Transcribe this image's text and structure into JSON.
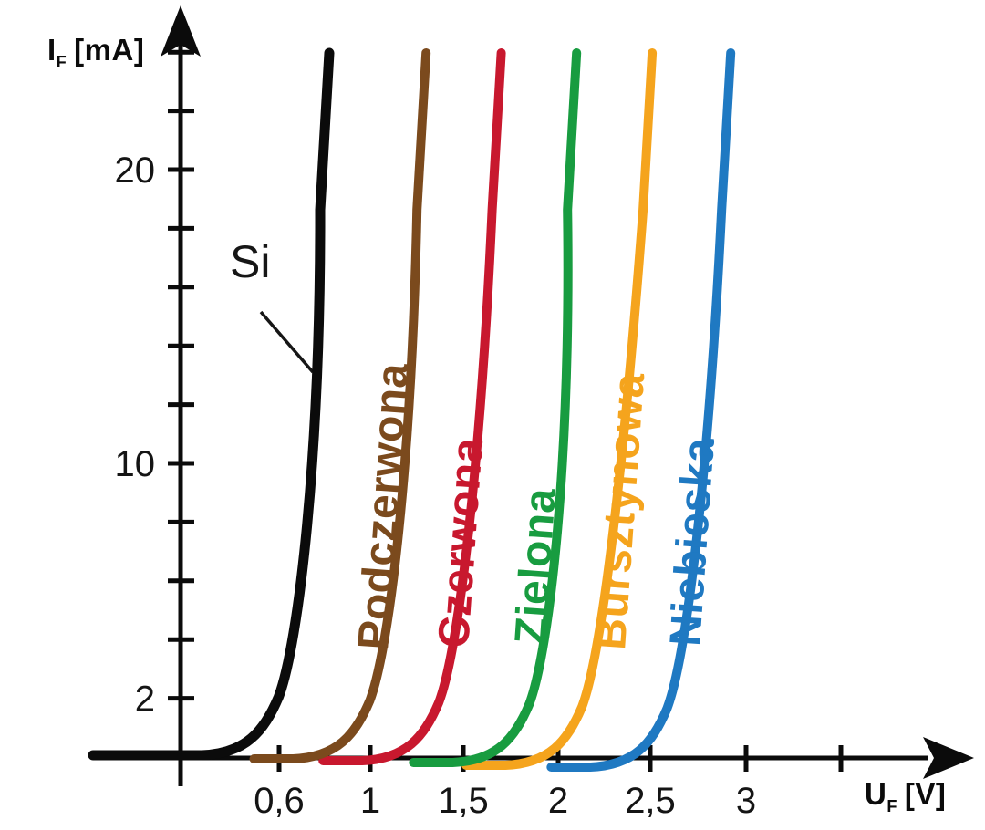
{
  "figure": {
    "background": "#ffffff",
    "y_axis_label": {
      "symbol": "I",
      "subscript": "F",
      "unit": "[mA]"
    },
    "x_axis_label": {
      "symbol": "U",
      "subscript": "F",
      "unit": "[V]"
    },
    "annotation_si": "Si"
  },
  "chart_data": {
    "type": "line",
    "title": "",
    "xlabel": "UF [V]",
    "ylabel": "IF [mA]",
    "xlim": [
      0,
      3.8
    ],
    "ylim": [
      0,
      25
    ],
    "grid": false,
    "legend_position": "rotated color labels beside each curve",
    "x_ticks": [
      {
        "value": 0.6,
        "label": "0,6"
      },
      {
        "value": 1,
        "label": "1"
      },
      {
        "value": 1.5,
        "label": "1,5"
      },
      {
        "value": 2,
        "label": "2"
      },
      {
        "value": 2.5,
        "label": "2,5"
      },
      {
        "value": 3,
        "label": "3"
      },
      {
        "value": 3.5,
        "label": ""
      }
    ],
    "y_ticks": [
      {
        "value": 2,
        "label": "2"
      },
      {
        "value": 4,
        "label": ""
      },
      {
        "value": 6,
        "label": ""
      },
      {
        "value": 8,
        "label": ""
      },
      {
        "value": 10,
        "label": "10"
      },
      {
        "value": 12,
        "label": ""
      },
      {
        "value": 14,
        "label": ""
      },
      {
        "value": 16,
        "label": ""
      },
      {
        "value": 18,
        "label": ""
      },
      {
        "value": 20,
        "label": "20"
      },
      {
        "value": 22,
        "label": ""
      },
      {
        "value": 24,
        "label": ""
      }
    ],
    "series": [
      {
        "name": "Si",
        "label": "Si",
        "color": "#0b0b0b",
        "v_threshold": 0.55,
        "v_at_max_current": 0.82,
        "max_current_mA": 24
      },
      {
        "name": "Podczerwona",
        "label": "Podczerwona",
        "color": "#7b4a1d",
        "v_threshold": 0.95,
        "v_at_max_current": 1.3,
        "max_current_mA": 24
      },
      {
        "name": "Czerwona",
        "label": "Czerwona",
        "color": "#c8182e",
        "v_threshold": 1.31,
        "v_at_max_current": 1.7,
        "max_current_mA": 24
      },
      {
        "name": "Zielona",
        "label": "Zielona",
        "color": "#189c40",
        "v_threshold": 1.79,
        "v_at_max_current": 2.1,
        "max_current_mA": 24
      },
      {
        "name": "Bursztynowa",
        "label": "Bursztynowa",
        "color": "#f5a41d",
        "v_threshold": 2.07,
        "v_at_max_current": 2.51,
        "max_current_mA": 24
      },
      {
        "name": "Niebieska",
        "label": "Niebieska",
        "color": "#1f79c2",
        "v_threshold": 2.53,
        "v_at_max_current": 2.92,
        "max_current_mA": 24
      }
    ]
  }
}
